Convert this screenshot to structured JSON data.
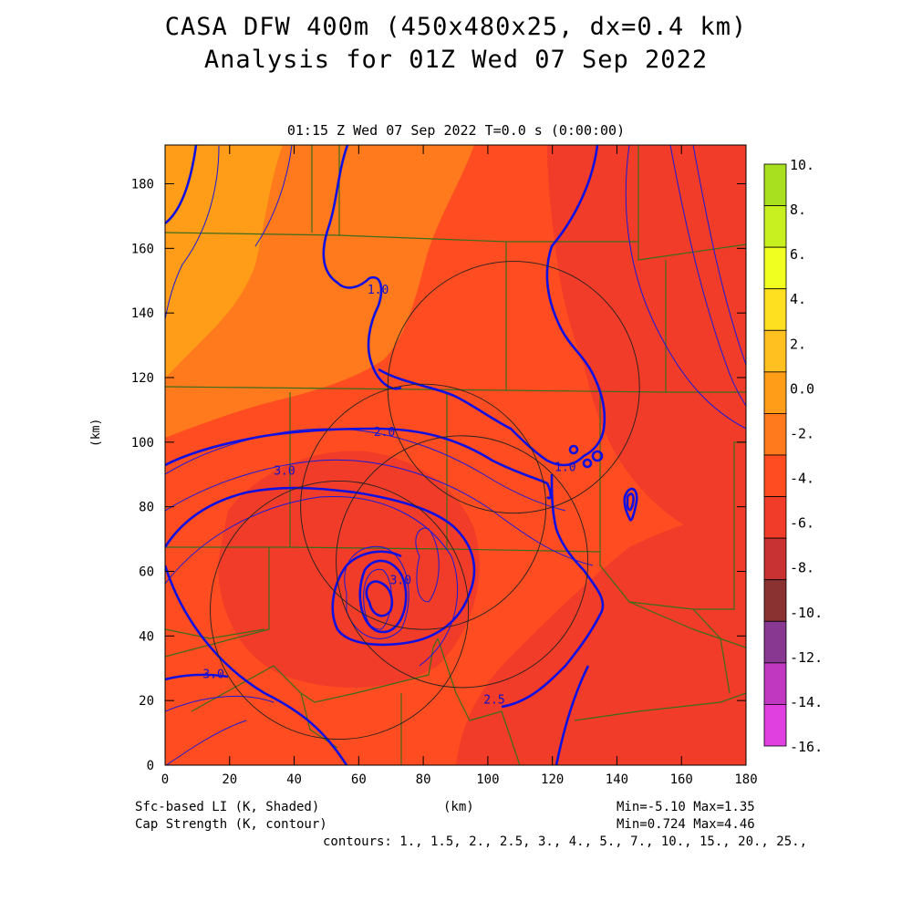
{
  "title": {
    "line1": "CASA DFW 400m (450x480x25, dx=0.4 km)",
    "line2": "Analysis for 01Z Wed 07 Sep 2022"
  },
  "subtitle": "01:15 Z Wed 07 Sep 2022   T=0.0 s (0:00:00)",
  "axes": {
    "xlabel": "(km)",
    "ylabel": "(km)",
    "x_ticks": [
      "0",
      "20",
      "40",
      "60",
      "80",
      "100",
      "120",
      "140",
      "160",
      "180"
    ],
    "y_ticks": [
      "0",
      "20",
      "40",
      "60",
      "80",
      "100",
      "120",
      "140",
      "160",
      "180"
    ],
    "x_range": [
      0,
      180
    ],
    "y_range": [
      0,
      192
    ]
  },
  "footer": {
    "shaded_field": "Sfc-based LI (K, Shaded)",
    "contour_field": "Cap Strength (K, contour)",
    "shaded_stats": "Min=-5.10 Max=1.35",
    "contour_stats": "Min=0.724 Max=4.46",
    "contours": "contours: 1., 1.5, 2., 2.5, 3., 4., 5., 7., 10., 15., 20., 25.,"
  },
  "colorbar": {
    "labels": [
      "10.",
      "8.",
      "6.",
      "4.",
      "2.",
      "0.0",
      "-2.",
      "-4.",
      "-6.",
      "-8.",
      "-10.",
      "-12.",
      "-14.",
      "-16."
    ],
    "colors": [
      "#a8e020",
      "#c8f020",
      "#f0ff20",
      "#ffe020",
      "#ffc020",
      "#ff9c18",
      "#ff7a1c",
      "#ff4c20",
      "#f03c28",
      "#c83232",
      "#8a3232",
      "#883890",
      "#c038c0",
      "#e040e0"
    ]
  },
  "contour_labels": [
    {
      "text": "1.0",
      "x": 66,
      "y": 146
    },
    {
      "text": "2.0",
      "x": 68,
      "y": 102
    },
    {
      "text": "3.0",
      "x": 37,
      "y": 90
    },
    {
      "text": "1.0",
      "x": 124,
      "y": 91
    },
    {
      "text": "3.0",
      "x": 73,
      "y": 56
    },
    {
      "text": "3.0",
      "x": 15,
      "y": 27
    },
    {
      "text": "2.5",
      "x": 102,
      "y": 19
    }
  ],
  "range_rings": [
    {
      "cx": 108,
      "cy": 117,
      "r": 39
    },
    {
      "cx": 80,
      "cy": 80,
      "r": 38
    },
    {
      "cx": 92,
      "cy": 63,
      "r": 39
    },
    {
      "cx": 54,
      "cy": 48,
      "r": 40
    }
  ]
}
